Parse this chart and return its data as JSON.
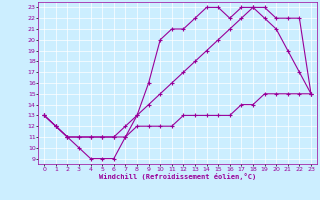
{
  "xlabel": "Windchill (Refroidissement éolien,°C)",
  "bg_color": "#cceeff",
  "line_color": "#990099",
  "grid_color": "#ffffff",
  "xlim": [
    -0.5,
    23.5
  ],
  "ylim": [
    8.5,
    23.5
  ],
  "xticks": [
    0,
    1,
    2,
    3,
    4,
    5,
    6,
    7,
    8,
    9,
    10,
    11,
    12,
    13,
    14,
    15,
    16,
    17,
    18,
    19,
    20,
    21,
    22,
    23
  ],
  "yticks": [
    9,
    10,
    11,
    12,
    13,
    14,
    15,
    16,
    17,
    18,
    19,
    20,
    21,
    22,
    23
  ],
  "line1_x": [
    0,
    1,
    2,
    3,
    4,
    5,
    6,
    7,
    8,
    9,
    10,
    11,
    12,
    13,
    14,
    15,
    16,
    17,
    18,
    19,
    20,
    21,
    22,
    23
  ],
  "line1_y": [
    13,
    12,
    11,
    10,
    9,
    9,
    9,
    11,
    13,
    16,
    20,
    21,
    21,
    22,
    23,
    23,
    22,
    23,
    23,
    22,
    21,
    19,
    17,
    15
  ],
  "line2_x": [
    0,
    1,
    2,
    3,
    4,
    5,
    6,
    7,
    8,
    9,
    10,
    11,
    12,
    13,
    14,
    15,
    16,
    17,
    18,
    19,
    20,
    21,
    22,
    23
  ],
  "line2_y": [
    13,
    12,
    11,
    11,
    11,
    11,
    11,
    12,
    13,
    14,
    15,
    16,
    17,
    18,
    19,
    20,
    21,
    22,
    23,
    23,
    22,
    22,
    22,
    15
  ],
  "line3_x": [
    0,
    1,
    2,
    3,
    4,
    5,
    6,
    7,
    8,
    9,
    10,
    11,
    12,
    13,
    14,
    15,
    16,
    17,
    18,
    19,
    20,
    21,
    22,
    23
  ],
  "line3_y": [
    13,
    12,
    11,
    11,
    11,
    11,
    11,
    11,
    12,
    12,
    12,
    12,
    13,
    13,
    13,
    13,
    13,
    14,
    14,
    15,
    15,
    15,
    15,
    15
  ]
}
